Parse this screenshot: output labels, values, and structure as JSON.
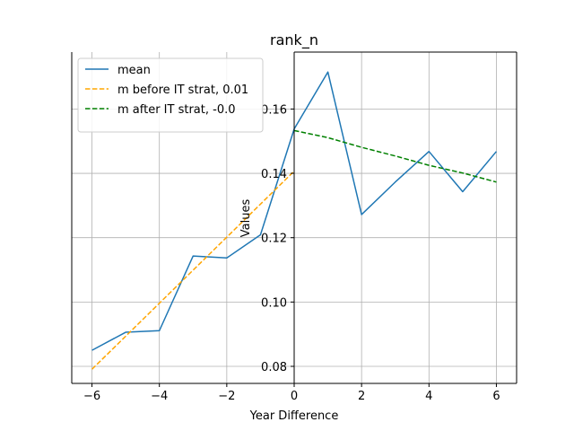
{
  "chart_data": {
    "type": "line",
    "title": "rank_n",
    "xlabel": "Year Difference",
    "ylabel": "Values",
    "xlim": [
      -6.6,
      6.6
    ],
    "ylim": [
      0.0747,
      0.1777
    ],
    "xticks": [
      -6,
      -4,
      -2,
      0,
      2,
      4,
      6
    ],
    "xtick_labels": [
      "−6",
      "−4",
      "−2",
      "0",
      "2",
      "4",
      "6"
    ],
    "yticks": [
      0.08,
      0.1,
      0.12,
      0.14,
      0.16
    ],
    "ytick_labels": [
      "0.08",
      "0.10",
      "0.12",
      "0.14",
      "0.16"
    ],
    "grid": true,
    "legend_position": "upper-left",
    "series": [
      {
        "name": "mean",
        "style": "solid",
        "color": "#1f77b4",
        "x": [
          -6,
          -5,
          -4,
          -3,
          -2,
          -1,
          0,
          1,
          2,
          3,
          4,
          5,
          6
        ],
        "y": [
          0.085,
          0.0906,
          0.0911,
          0.1143,
          0.1137,
          0.1209,
          0.1538,
          0.1715,
          0.1272,
          0.1373,
          0.1468,
          0.1343,
          0.1468
        ]
      },
      {
        "name": "m before IT strat, 0.01",
        "style": "dashed",
        "color": "#ffa500",
        "x": [
          -6,
          0
        ],
        "y": [
          0.0791,
          0.1407
        ]
      },
      {
        "name": "m after IT strat, -0.0",
        "style": "dashed",
        "color": "#008000",
        "x": [
          0,
          1,
          2,
          3,
          4,
          5,
          6
        ],
        "y": [
          0.1533,
          0.1511,
          0.1481,
          0.1454,
          0.1425,
          0.1401,
          0.1373
        ]
      }
    ]
  }
}
